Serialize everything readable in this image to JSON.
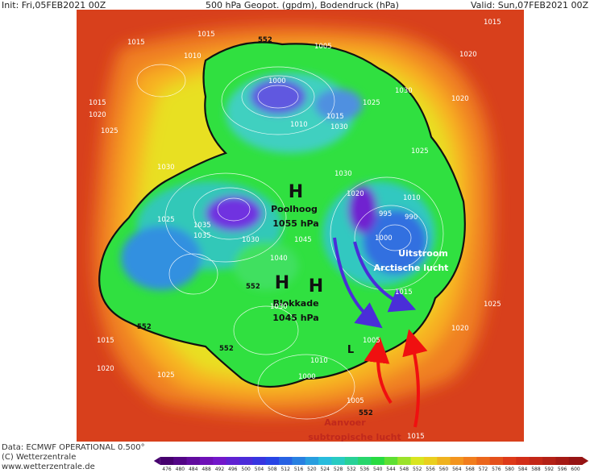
{
  "header": {
    "init": "Init: Fri,05FEB2021 00Z",
    "title": "500 hPa Geopot. (gpdm), Bodendruck (hPa)",
    "valid": "Valid: Sun,07FEB2021 00Z"
  },
  "annotations": {
    "poolhoog_h": "H",
    "poolhoog": "Poolhoog",
    "poolhoog_p": "1055 hPa",
    "blok_h1": "H",
    "blok_h2": "H",
    "blokkade": "Blokkade",
    "blokkade_p": "1045 hPa",
    "uitstroom": "Uitstroom",
    "arctisch": "Arctische lucht",
    "aanvoer": "Aanvoer",
    "subtropisch": "subtropische lucht",
    "low": "L"
  },
  "contour_labels": [
    "552",
    "552",
    "552",
    "552",
    "552"
  ],
  "pressure_labels": [
    "1015",
    "1015",
    "1010",
    "1015",
    "1020",
    "1025",
    "1030",
    "1000",
    "1005",
    "1030",
    "1025",
    "1015",
    "1030",
    "1010",
    "1020",
    "1030",
    "1035",
    "1025",
    "1030",
    "1035",
    "1045",
    "1040",
    "1030",
    "1005",
    "1000",
    "995",
    "990",
    "1010",
    "1025",
    "1020",
    "1015",
    "1020",
    "1020",
    "1025",
    "1015",
    "1020",
    "1010",
    "1000",
    "1005",
    "1015",
    "1015",
    "1025"
  ],
  "colorbar": {
    "ticks": [
      476,
      480,
      484,
      488,
      492,
      496,
      500,
      504,
      508,
      512,
      516,
      520,
      524,
      528,
      532,
      536,
      540,
      544,
      548,
      552,
      556,
      560,
      564,
      568,
      572,
      576,
      580,
      584,
      588,
      592,
      596,
      600
    ]
  },
  "footer": {
    "data": "Data: ECMWF OPERATIONAL 0.500°",
    "copyright": "(C) Wetterzentrale",
    "url": "www.wetterzentrale.de"
  }
}
